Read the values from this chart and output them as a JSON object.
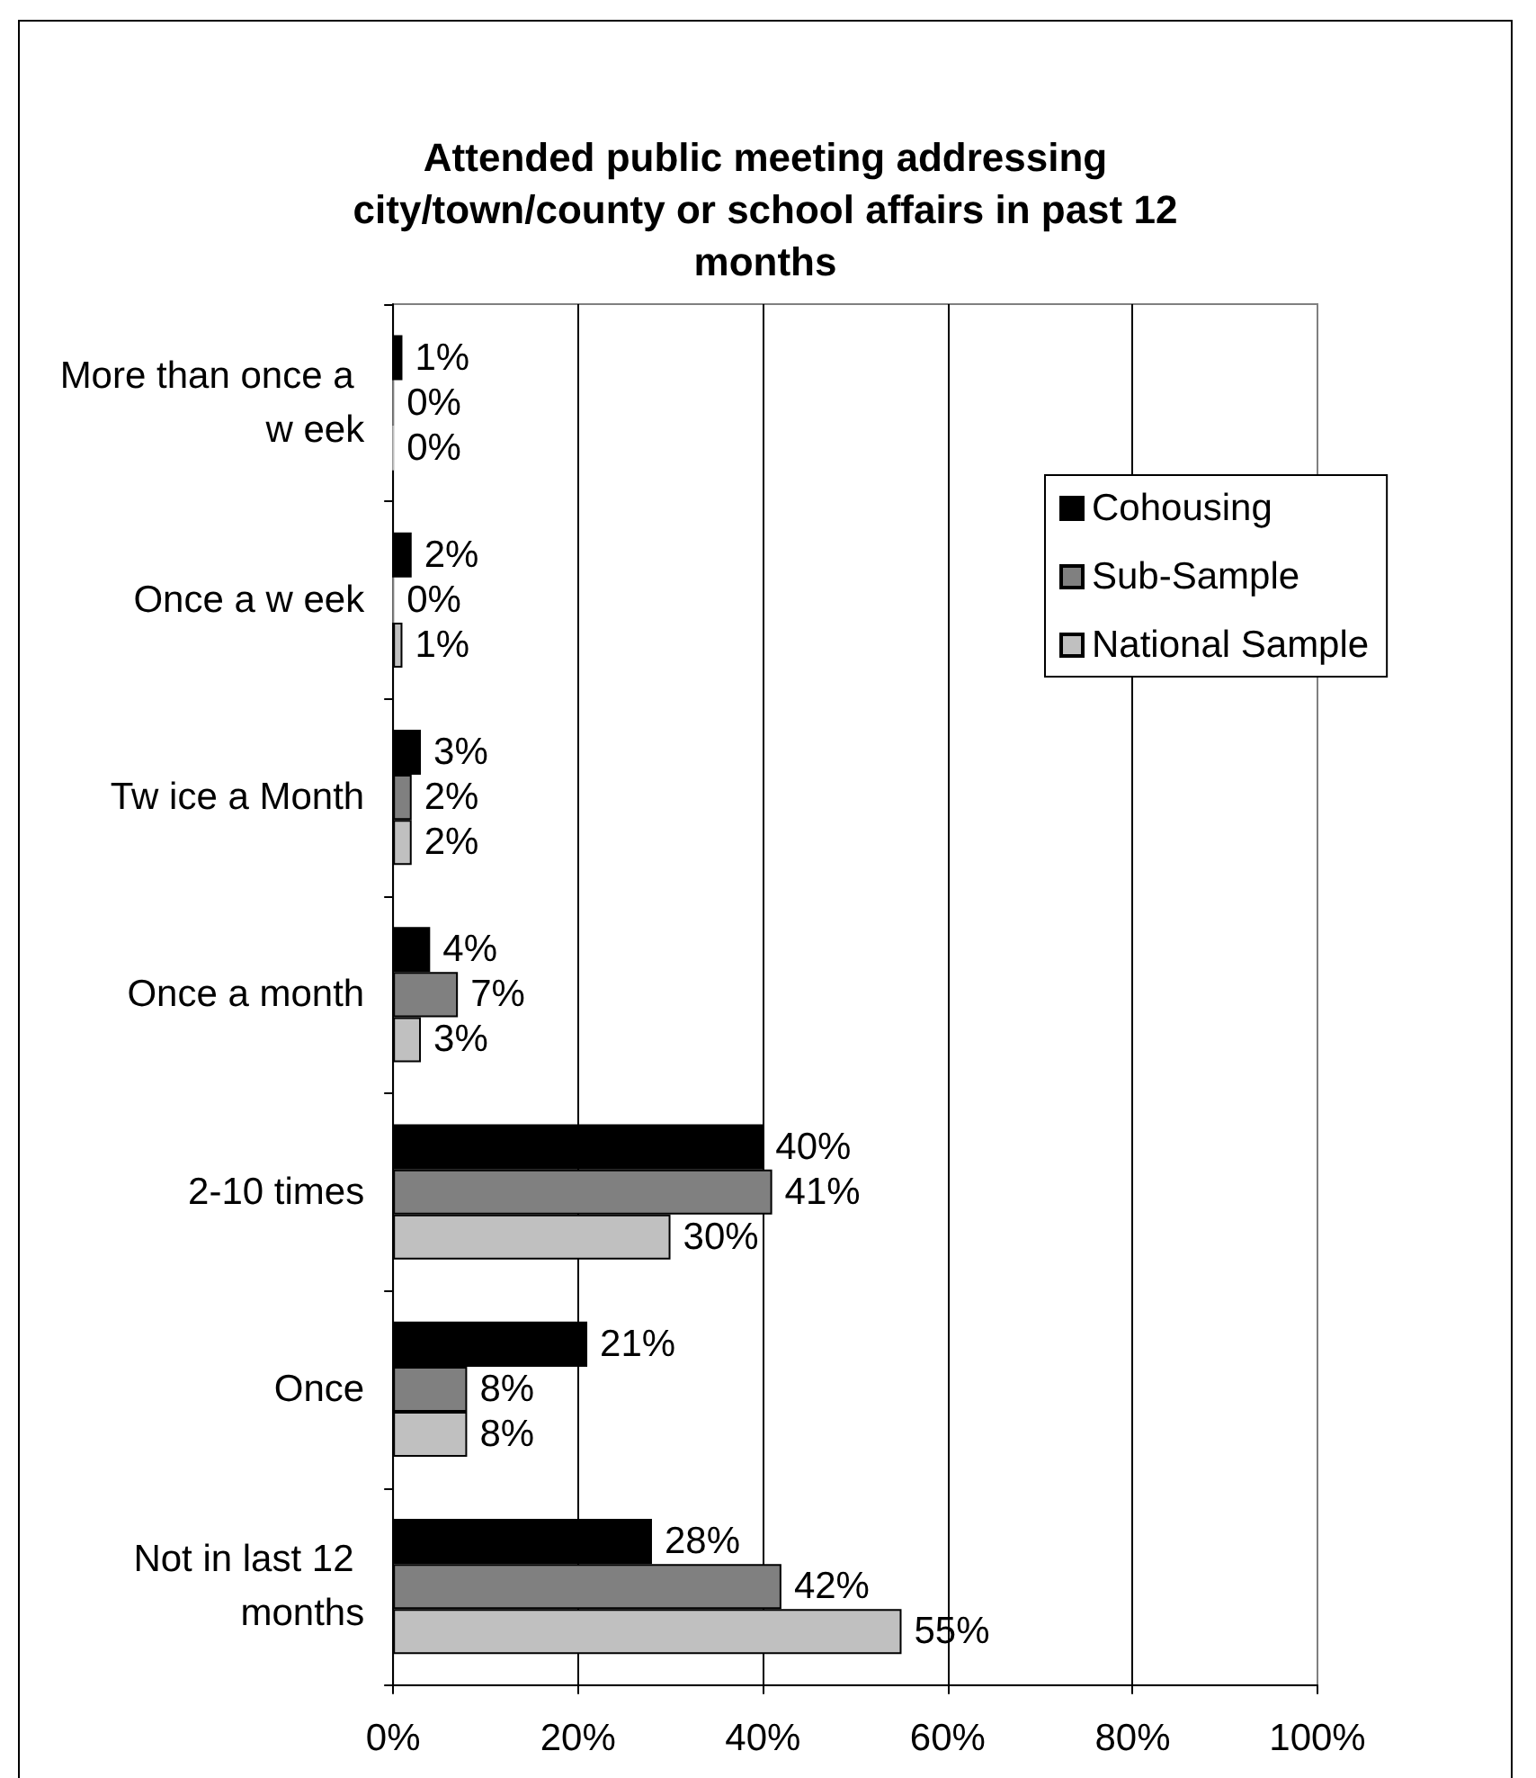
{
  "chart_data": {
    "type": "bar",
    "orientation": "horizontal",
    "title": "Attended public meeting addressing city/town/county or school affairs in past 12 months",
    "categories": [
      "More than once a w eek",
      "Once a w eek",
      "Tw ice a Month",
      "Once a month",
      "2-10 times",
      "Once",
      "Not in last 12 months"
    ],
    "series": [
      {
        "name": "Cohousing",
        "color": "#000000",
        "values": [
          1,
          2,
          3,
          4,
          40,
          21,
          28
        ],
        "value_labels": [
          "1%",
          "2%",
          "3%",
          "4%",
          "40%",
          "21%",
          "28%"
        ]
      },
      {
        "name": "Sub-Sample",
        "color": "#808080",
        "values": [
          0,
          0,
          2,
          7,
          41,
          8,
          42
        ],
        "value_labels": [
          "0%",
          "0%",
          "2%",
          "7%",
          "41%",
          "8%",
          "42%"
        ]
      },
      {
        "name": "National Sample",
        "color": "#c0c0c0",
        "values": [
          0,
          1,
          2,
          3,
          30,
          8,
          55
        ],
        "value_labels": [
          "0%",
          "1%",
          "2%",
          "3%",
          "30%",
          "8%",
          "55%"
        ]
      }
    ],
    "xlim": [
      0,
      100
    ],
    "xticks": [
      {
        "value": 0,
        "label": "0%"
      },
      {
        "value": 20,
        "label": "20%"
      },
      {
        "value": 40,
        "label": "40%"
      },
      {
        "value": 60,
        "label": "60%"
      },
      {
        "value": 80,
        "label": "80%"
      },
      {
        "value": 100,
        "label": "100%"
      }
    ],
    "grid": "x",
    "legend": "top right"
  }
}
